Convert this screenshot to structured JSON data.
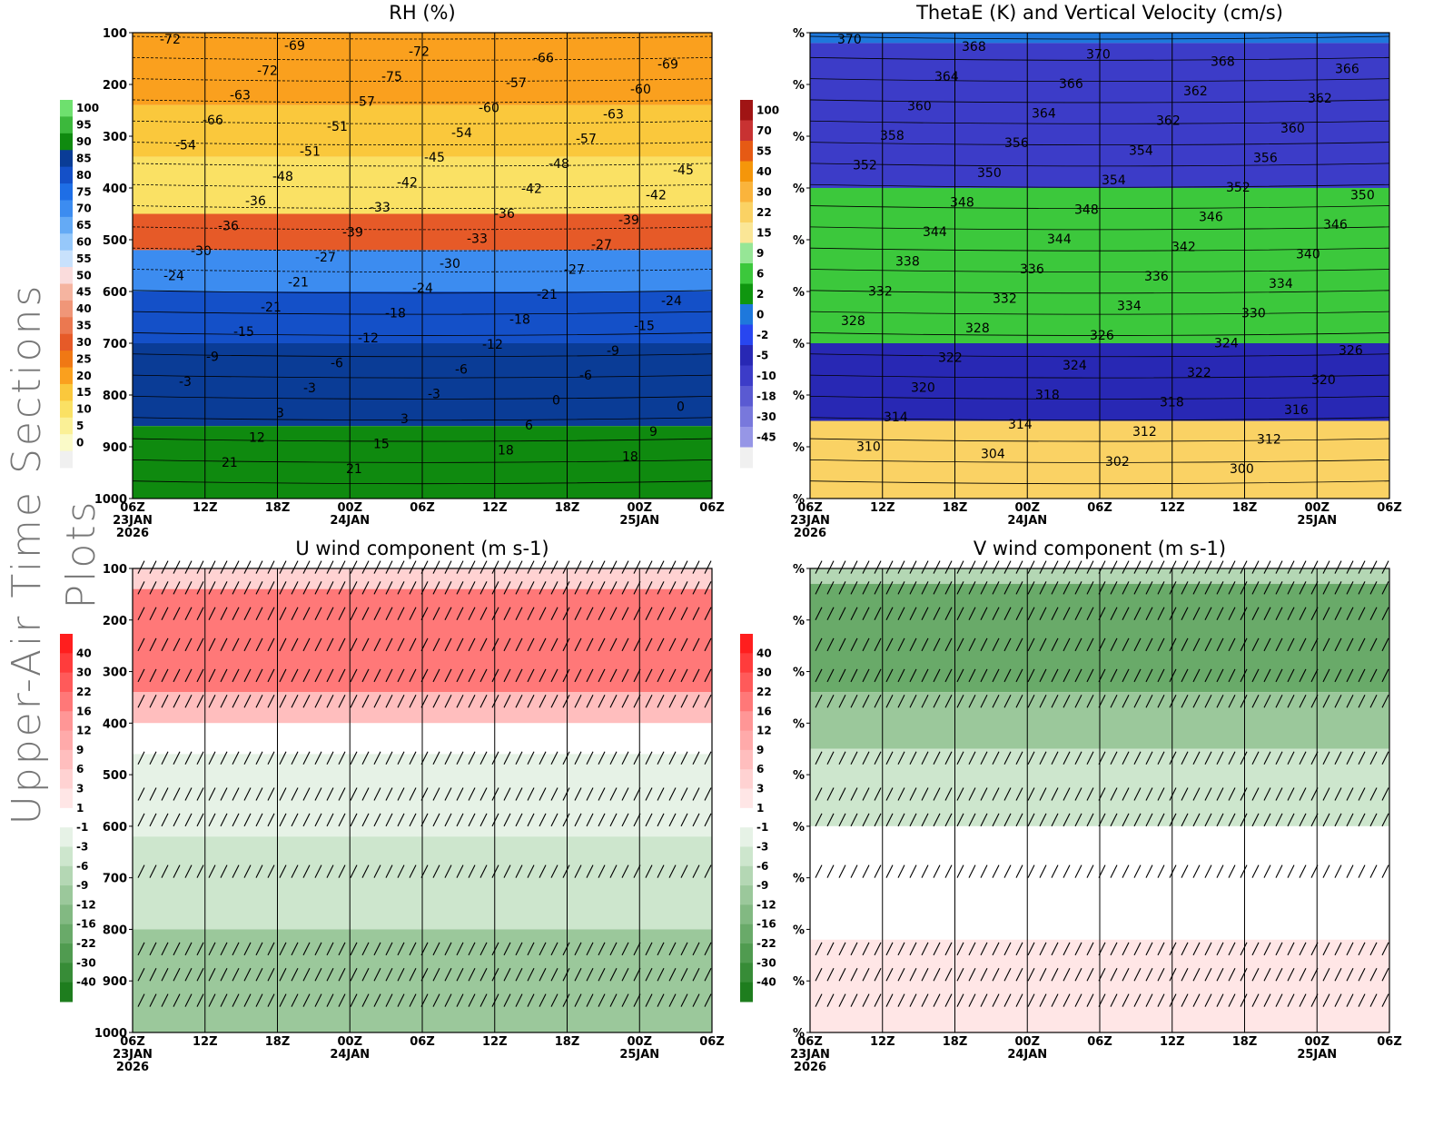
{
  "figure": {
    "side_title": "Upper-Air Time Sections Plots"
  },
  "chart_data": [
    {
      "id": "rh",
      "type": "heatmap",
      "title": "RH (%)",
      "xlabel": "",
      "ylabel": "",
      "x_ticks": [
        "06Z",
        "12Z",
        "18Z",
        "00Z",
        "06Z",
        "12Z",
        "18Z",
        "00Z",
        "06Z"
      ],
      "x_date_labels": [
        {
          "tick": 0,
          "lines": [
            "23JAN",
            "2026"
          ]
        },
        {
          "tick": 3,
          "lines": [
            "24JAN"
          ]
        },
        {
          "tick": 7,
          "lines": [
            "25JAN"
          ]
        }
      ],
      "y_ticks": [
        "100",
        "200",
        "300",
        "400",
        "500",
        "600",
        "700",
        "800",
        "900",
        "1000"
      ],
      "ylim": [
        1000,
        100
      ],
      "colorbar": {
        "labels": [
          "100",
          "95",
          "90",
          "85",
          "80",
          "75",
          "70",
          "65",
          "60",
          "55",
          "50",
          "45",
          "40",
          "35",
          "30",
          "25",
          "20",
          "15",
          "10",
          "5",
          "0"
        ],
        "colors": [
          "#6ee06e",
          "#3cb83c",
          "#0f8a0f",
          "#0a3c96",
          "#1450c8",
          "#1e6ee6",
          "#3c8cf0",
          "#64aaf5",
          "#96c8fa",
          "#c8e1fc",
          "#fadcdc",
          "#f5b4a0",
          "#f09678",
          "#eb7850",
          "#e65a28",
          "#f07814",
          "#faa01e",
          "#fac83c",
          "#fae164",
          "#faf096",
          "#fafac8",
          "#f0f0f0"
        ]
      },
      "fill_bands": [
        {
          "p_top": 100,
          "p_bot": 240,
          "color": "#faa01e"
        },
        {
          "p_top": 240,
          "p_bot": 340,
          "color": "#fac83c"
        },
        {
          "p_top": 340,
          "p_bot": 450,
          "color": "#fae164"
        },
        {
          "p_top": 450,
          "p_bot": 520,
          "color": "#e65a28"
        },
        {
          "p_top": 520,
          "p_bot": 600,
          "color": "#3c8cf0"
        },
        {
          "p_top": 600,
          "p_bot": 700,
          "color": "#1450c8"
        },
        {
          "p_top": 700,
          "p_bot": 860,
          "color": "#0a3c96"
        },
        {
          "p_top": 860,
          "p_bot": 1000,
          "color": "#0f8a0f"
        }
      ],
      "contour_labels": [
        "-72",
        "-69",
        "-72",
        "-66",
        "-69",
        "-72",
        "-75",
        "-57",
        "-60",
        "-63",
        "-57",
        "-60",
        "-63",
        "-66",
        "-51",
        "-54",
        "-57",
        "-54",
        "-51",
        "-45",
        "-48",
        "-45",
        "-48",
        "-42",
        "-42",
        "-42",
        "-36",
        "-33",
        "-36",
        "-39",
        "-36",
        "-39",
        "-33",
        "-27",
        "-30",
        "-27",
        "-30",
        "-27",
        "-24",
        "-21",
        "-24",
        "-21",
        "-24",
        "-21",
        "-18",
        "-18",
        "-15",
        "-15",
        "-12",
        "-12",
        "-9",
        "-9",
        "-6",
        "-6",
        "-6",
        "-3",
        "-3",
        "-3",
        "0",
        "0",
        "3",
        "3",
        "6",
        "9",
        "12",
        "15",
        "18",
        "18",
        "21",
        "21"
      ]
    },
    {
      "id": "thetae",
      "type": "heatmap",
      "title": "ThetaE (K) and Vertical Velocity (cm/s)",
      "x_ticks": [
        "06Z",
        "12Z",
        "18Z",
        "00Z",
        "06Z",
        "12Z",
        "18Z",
        "00Z",
        "06Z"
      ],
      "x_date_labels": [
        {
          "tick": 0,
          "lines": [
            "23JAN",
            "2026"
          ]
        },
        {
          "tick": 3,
          "lines": [
            "24JAN"
          ]
        },
        {
          "tick": 7,
          "lines": [
            "25JAN"
          ]
        }
      ],
      "y_ticks": [
        "%",
        "%",
        "%",
        "%",
        "%",
        "%",
        "%",
        "%",
        "%",
        "%"
      ],
      "colorbar": {
        "labels": [
          "100",
          "70",
          "55",
          "40",
          "30",
          "22",
          "15",
          "9",
          "6",
          "2",
          "0",
          "-2",
          "-5",
          "-10",
          "-18",
          "-30",
          "-45"
        ],
        "colors": [
          "#a01414",
          "#c83232",
          "#e65a14",
          "#f5960a",
          "#fab43c",
          "#fad264",
          "#fae696",
          "#96e696",
          "#3cc83c",
          "#0f960f",
          "#1e78dc",
          "#2846f0",
          "#2828b4",
          "#3c3cc8",
          "#5a5ad2",
          "#7878dc",
          "#9696e6",
          "#f0f0f0"
        ]
      },
      "fill_bands": [
        {
          "p_top": 100,
          "p_bot": 120,
          "color": "#1e78dc"
        },
        {
          "p_top": 120,
          "p_bot": 400,
          "color": "#3c3cc8"
        },
        {
          "p_top": 400,
          "p_bot": 700,
          "color": "#3cc83c"
        },
        {
          "p_top": 700,
          "p_bot": 850,
          "color": "#2828b4"
        },
        {
          "p_top": 850,
          "p_bot": 1000,
          "color": "#fad264"
        }
      ],
      "contour_labels": [
        "370",
        "368",
        "370",
        "368",
        "366",
        "364",
        "366",
        "362",
        "362",
        "360",
        "364",
        "362",
        "360",
        "358",
        "356",
        "354",
        "356",
        "352",
        "350",
        "354",
        "352",
        "350",
        "348",
        "348",
        "346",
        "346",
        "344",
        "344",
        "342",
        "340",
        "338",
        "336",
        "336",
        "334",
        "332",
        "332",
        "334",
        "330",
        "328",
        "328",
        "326",
        "324",
        "326",
        "322",
        "324",
        "322",
        "320",
        "320",
        "318",
        "318",
        "316",
        "314",
        "314",
        "312",
        "312",
        "310",
        "304",
        "302",
        "300"
      ]
    },
    {
      "id": "u_wind",
      "type": "heatmap",
      "title": "U wind component (m s-1)",
      "x_ticks": [
        "06Z",
        "12Z",
        "18Z",
        "00Z",
        "06Z",
        "12Z",
        "18Z",
        "00Z",
        "06Z"
      ],
      "x_date_labels": [
        {
          "tick": 0,
          "lines": [
            "23JAN",
            "2026"
          ]
        },
        {
          "tick": 3,
          "lines": [
            "24JAN"
          ]
        },
        {
          "tick": 7,
          "lines": [
            "25JAN"
          ]
        }
      ],
      "y_ticks": [
        "100",
        "200",
        "300",
        "400",
        "500",
        "600",
        "700",
        "800",
        "900",
        "1000"
      ],
      "ylim": [
        1000,
        100
      ],
      "colorbar": {
        "labels": [
          "40",
          "30",
          "22",
          "16",
          "12",
          "9",
          "6",
          "3",
          "1",
          "-1",
          "-3",
          "-6",
          "-9",
          "-12",
          "-16",
          "-22",
          "-30",
          "-40"
        ],
        "colors": [
          "#ff1e1e",
          "#ff3c3c",
          "#ff5a5a",
          "#ff7878",
          "#ff9696",
          "#ffaaaa",
          "#ffbebe",
          "#ffd2d2",
          "#ffe6e6",
          "#ffffff",
          "#e6f2e6",
          "#cde6cd",
          "#b4d7b4",
          "#9bc89b",
          "#82b982",
          "#69aa69",
          "#509b50",
          "#378c37",
          "#1e7d1e"
        ]
      },
      "fill_bands": [
        {
          "p_top": 100,
          "p_bot": 140,
          "color": "#ffd2d2"
        },
        {
          "p_top": 140,
          "p_bot": 340,
          "color": "#ff7878"
        },
        {
          "p_top": 340,
          "p_bot": 400,
          "color": "#ffbebe"
        },
        {
          "p_top": 400,
          "p_bot": 460,
          "color": "#ffffff"
        },
        {
          "p_top": 460,
          "p_bot": 620,
          "color": "#e6f2e6"
        },
        {
          "p_top": 620,
          "p_bot": 800,
          "color": "#cde6cd"
        },
        {
          "p_top": 800,
          "p_bot": 1000,
          "color": "#9bc89b"
        }
      ],
      "barb_levels": [
        110,
        150,
        200,
        260,
        320,
        370,
        480,
        550,
        600,
        700,
        850,
        900,
        950
      ]
    },
    {
      "id": "v_wind",
      "type": "heatmap",
      "title": "V wind component (m s-1)",
      "x_ticks": [
        "06Z",
        "12Z",
        "18Z",
        "00Z",
        "06Z",
        "12Z",
        "18Z",
        "00Z",
        "06Z"
      ],
      "x_date_labels": [
        {
          "tick": 0,
          "lines": [
            "23JAN",
            "2026"
          ]
        },
        {
          "tick": 3,
          "lines": [
            "24JAN"
          ]
        },
        {
          "tick": 7,
          "lines": [
            "25JAN"
          ]
        }
      ],
      "y_ticks": [
        "%",
        "%",
        "%",
        "%",
        "%",
        "%",
        "%",
        "%",
        "%",
        "%"
      ],
      "colorbar": {
        "labels": [
          "40",
          "30",
          "22",
          "16",
          "12",
          "9",
          "6",
          "3",
          "1",
          "-1",
          "-3",
          "-6",
          "-9",
          "-12",
          "-16",
          "-22",
          "-30",
          "-40"
        ],
        "colors": [
          "#ff1e1e",
          "#ff3c3c",
          "#ff5a5a",
          "#ff7878",
          "#ff9696",
          "#ffaaaa",
          "#ffbebe",
          "#ffd2d2",
          "#ffe6e6",
          "#ffffff",
          "#e6f2e6",
          "#cde6cd",
          "#b4d7b4",
          "#9bc89b",
          "#82b982",
          "#69aa69",
          "#509b50",
          "#378c37",
          "#1e7d1e"
        ]
      },
      "fill_bands": [
        {
          "p_top": 100,
          "p_bot": 130,
          "color": "#b4d7b4"
        },
        {
          "p_top": 130,
          "p_bot": 340,
          "color": "#69aa69"
        },
        {
          "p_top": 340,
          "p_bot": 450,
          "color": "#9bc89b"
        },
        {
          "p_top": 450,
          "p_bot": 600,
          "color": "#cde6cd"
        },
        {
          "p_top": 600,
          "p_bot": 820,
          "color": "#ffffff"
        },
        {
          "p_top": 820,
          "p_bot": 1000,
          "color": "#ffe6e6"
        }
      ],
      "barb_levels": [
        110,
        150,
        200,
        260,
        320,
        370,
        480,
        550,
        600,
        700,
        850,
        900,
        950
      ]
    }
  ]
}
